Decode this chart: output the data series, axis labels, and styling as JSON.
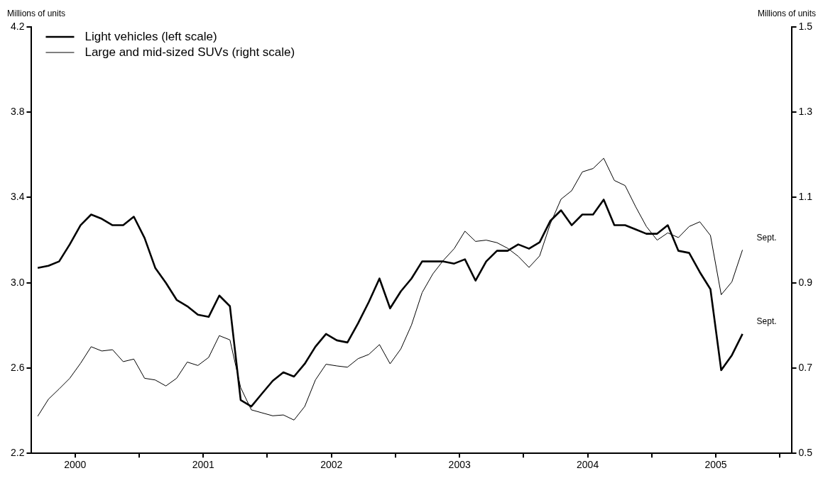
{
  "chart_data": {
    "type": "line",
    "ylabel": "Millions of units",
    "y2label": "Millions of units",
    "x": [
      2000.208,
      2000.292,
      2000.375,
      2000.458,
      2000.542,
      2000.625,
      2000.708,
      2000.792,
      2000.875,
      2000.958,
      2001.042,
      2001.125,
      2001.208,
      2001.292,
      2001.375,
      2001.458,
      2001.542,
      2001.625,
      2001.708,
      2001.792,
      2001.875,
      2001.958,
      2002.042,
      2002.125,
      2002.208,
      2002.292,
      2002.375,
      2002.458,
      2002.542,
      2002.625,
      2002.708,
      2002.792,
      2002.875,
      2002.958,
      2003.042,
      2003.125,
      2003.208,
      2003.292,
      2003.375,
      2003.458,
      2003.542,
      2003.625,
      2003.708,
      2003.792,
      2003.875,
      2003.958,
      2004.042,
      2004.125,
      2004.208,
      2004.292,
      2004.375,
      2004.458,
      2004.542,
      2004.625,
      2004.708,
      2004.792,
      2004.875,
      2004.958,
      2005.042,
      2005.125,
      2005.208,
      2005.292,
      2005.375,
      2005.458,
      2005.542,
      2005.625,
      2005.708
    ],
    "series": [
      {
        "name": "Light vehicles (left scale)",
        "color": "#000000",
        "values": [
          3.07,
          3.08,
          3.1,
          3.18,
          3.27,
          3.32,
          3.3,
          3.27,
          3.27,
          3.31,
          3.21,
          3.07,
          3.0,
          2.92,
          2.89,
          2.85,
          2.84,
          2.94,
          2.89,
          2.45,
          2.42,
          2.48,
          2.54,
          2.58,
          2.56,
          2.62,
          2.7,
          2.76,
          2.73,
          2.72,
          2.81,
          2.91,
          3.02,
          2.88,
          2.96,
          3.02,
          3.1,
          3.1,
          3.1,
          3.09,
          3.11,
          3.01,
          3.1,
          3.15,
          3.15,
          3.18,
          3.16,
          3.19,
          3.29,
          3.34,
          3.27,
          3.32,
          3.32,
          3.39,
          3.27,
          3.27,
          3.25,
          3.23,
          3.23,
          3.27,
          3.15,
          3.14,
          3.05,
          2.97,
          2.59,
          2.66,
          2.76
        ]
      },
      {
        "name": "Large and mid-sized SUVs (right scale)",
        "color": "#000000",
        "axis": "y2",
        "values": [
          0.587,
          0.627,
          0.651,
          0.676,
          0.711,
          0.75,
          0.74,
          0.743,
          0.715,
          0.721,
          0.676,
          0.672,
          0.658,
          0.676,
          0.714,
          0.706,
          0.725,
          0.776,
          0.766,
          0.654,
          0.602,
          0.595,
          0.588,
          0.59,
          0.578,
          0.61,
          0.672,
          0.709,
          0.705,
          0.702,
          0.722,
          0.732,
          0.755,
          0.71,
          0.745,
          0.801,
          0.877,
          0.921,
          0.953,
          0.98,
          1.021,
          0.997,
          1.0,
          0.994,
          0.981,
          0.962,
          0.936,
          0.963,
          1.038,
          1.096,
          1.116,
          1.16,
          1.168,
          1.192,
          1.14,
          1.128,
          1.078,
          1.032,
          1.0,
          1.017,
          1.006,
          1.032,
          1.043,
          1.011,
          0.872,
          0.902,
          0.977
        ]
      }
    ],
    "xlim": [
      2000.16,
      2006.09
    ],
    "xticks": [
      {
        "value": 2000.5,
        "label": "2000"
      },
      {
        "value": 2001,
        "label": null
      },
      {
        "value": 2001.5,
        "label": "2001"
      },
      {
        "value": 2002,
        "label": null
      },
      {
        "value": 2002.5,
        "label": "2002"
      },
      {
        "value": 2003,
        "label": null
      },
      {
        "value": 2003.5,
        "label": "2003"
      },
      {
        "value": 2004,
        "label": null
      },
      {
        "value": 2004.5,
        "label": "2004"
      },
      {
        "value": 2005,
        "label": null
      },
      {
        "value": 2005.5,
        "label": "2005"
      },
      {
        "value": 2006,
        "label": null
      }
    ],
    "ylim": [
      2.2,
      4.2
    ],
    "yticks": [
      2.2,
      2.6,
      {
        "value": 3,
        "label": "3.0"
      },
      3.4,
      3.8,
      4.2
    ],
    "y2lim": [
      0.5,
      1.5
    ],
    "y2ticks": [
      0.5,
      0.7,
      0.9,
      1.1,
      1.3,
      1.5
    ],
    "annotations": [
      {
        "text": "Sept.",
        "x": 2005.708,
        "y": 3.154
      },
      {
        "text": "Sept.",
        "x": 2005.708,
        "y": 2.759
      }
    ],
    "legend": "top left",
    "grid": false,
    "marker": "none",
    "line_style": "solid"
  }
}
